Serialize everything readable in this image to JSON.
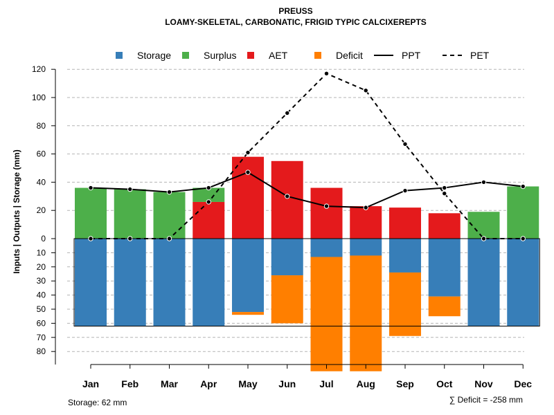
{
  "chart_data": {
    "type": "bar",
    "title": "PREUSS",
    "subtitle": "LOAMY-SKELETAL, CARBONATIC, FRIGID TYPIC CALCIXEREPTS",
    "ylabel": "Inputs | Outputs | Storage    (mm)",
    "categories": [
      "Jan",
      "Feb",
      "Mar",
      "Apr",
      "May",
      "Jun",
      "Jul",
      "Aug",
      "Sep",
      "Oct",
      "Nov",
      "Dec"
    ],
    "yticks_positive": [
      "0",
      "20",
      "40",
      "60",
      "80",
      "100",
      "120"
    ],
    "yticks_negative": [
      "10",
      "20",
      "30",
      "40",
      "50",
      "60",
      "70",
      "80"
    ],
    "ylim": [
      -90,
      120
    ],
    "legend": [
      {
        "key": "storage",
        "label": "Storage",
        "kind": "box",
        "color": "#377EB8"
      },
      {
        "key": "surplus",
        "label": "Surplus",
        "kind": "box",
        "color": "#4DAF4A"
      },
      {
        "key": "aet",
        "label": "AET",
        "kind": "box",
        "color": "#E41A1C"
      },
      {
        "key": "deficit",
        "label": "Deficit",
        "kind": "box",
        "color": "#FF7F00"
      },
      {
        "key": "ppt",
        "label": "PPT",
        "kind": "solid",
        "color": "#000000"
      },
      {
        "key": "pet",
        "label": "PET",
        "kind": "dashed",
        "color": "#000000"
      }
    ],
    "series": [
      {
        "name": "Surplus",
        "key": "surplus",
        "color": "#4DAF4A",
        "values": [
          36,
          35,
          33,
          10,
          0,
          0,
          0,
          0,
          0,
          0,
          19,
          37
        ]
      },
      {
        "name": "AET",
        "key": "aet",
        "color": "#E41A1C",
        "values": [
          0,
          0,
          0,
          26,
          58,
          55,
          36,
          23,
          22,
          18,
          0,
          0
        ]
      },
      {
        "name": "Storage",
        "key": "storage",
        "color": "#377EB8",
        "values": [
          62,
          62,
          62,
          62,
          52,
          26,
          13,
          12,
          24,
          41,
          62,
          62
        ]
      },
      {
        "name": "Deficit",
        "key": "deficit",
        "color": "#FF7F00",
        "values": [
          0,
          0,
          0,
          0,
          2,
          34,
          81,
          82,
          45,
          14,
          0,
          0
        ]
      },
      {
        "name": "PPT",
        "key": "ppt",
        "color": "#000000",
        "values": [
          36,
          35,
          33,
          36,
          47,
          30,
          23,
          22,
          34,
          36,
          40,
          37
        ]
      },
      {
        "name": "PET",
        "key": "pet",
        "color": "#000000",
        "values": [
          0,
          0,
          0,
          26,
          61,
          89,
          117,
          105,
          67,
          32,
          0,
          0
        ]
      }
    ],
    "storage_capacity": 62,
    "storage_label": "Storage: 62 mm",
    "deficit_label": "∑ Deficit = -258 mm",
    "grid": true
  }
}
